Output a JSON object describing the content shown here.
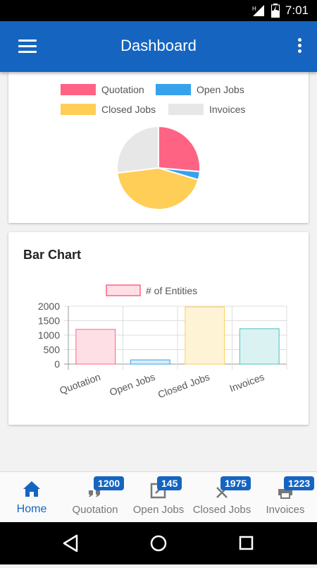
{
  "status_bar": {
    "time": "7:01"
  },
  "app_bar": {
    "title": "Dashboard",
    "menu_icon": "hamburger-menu-icon",
    "more_icon": "more-vert-icon"
  },
  "pie_card": {
    "legend": [
      {
        "label": "Quotation",
        "color": "#ff6384"
      },
      {
        "label": "Open Jobs",
        "color": "#36a2eb"
      },
      {
        "label": "Closed Jobs",
        "color": "#ffce56"
      },
      {
        "label": "Invoices",
        "color": "#e7e7e7"
      }
    ]
  },
  "bar_card": {
    "title": "Bar Chart"
  },
  "chart_data": [
    {
      "type": "pie",
      "categories": [
        "Quotation",
        "Open Jobs",
        "Closed Jobs",
        "Invoices"
      ],
      "values": [
        1200,
        145,
        1975,
        1223
      ],
      "colors": [
        "#ff6384",
        "#36a2eb",
        "#ffce56",
        "#e7e7e7"
      ],
      "legend": "top"
    },
    {
      "type": "bar",
      "categories": [
        "Quotation",
        "Open Jobs",
        "Closed Jobs",
        "Invoices"
      ],
      "series": [
        {
          "name": "# of Entities",
          "values": [
            1200,
            145,
            1975,
            1223
          ]
        }
      ],
      "fill_colors": [
        "#ffdfe6",
        "#d7ecfb",
        "#fff3d6",
        "#dbf2f2"
      ],
      "stroke_colors": [
        "#ff6384",
        "#36a2eb",
        "#ffce56",
        "#4bc0c0"
      ],
      "yticks": [
        "0",
        "500",
        "1000",
        "1500",
        "2000"
      ],
      "ylim": [
        0,
        2000
      ],
      "grid": true,
      "legend": "top"
    }
  ],
  "bottom_nav": {
    "items": [
      {
        "label": "Home",
        "icon": "home-icon",
        "badge": ""
      },
      {
        "label": "Quotation",
        "icon": "quote-icon",
        "badge": "1200"
      },
      {
        "label": "Open Jobs",
        "icon": "open-box-icon",
        "badge": "145"
      },
      {
        "label": "Closed Jobs",
        "icon": "close-icon",
        "badge": "1975"
      },
      {
        "label": "Invoices",
        "icon": "printer-icon",
        "badge": "1223"
      }
    ]
  }
}
